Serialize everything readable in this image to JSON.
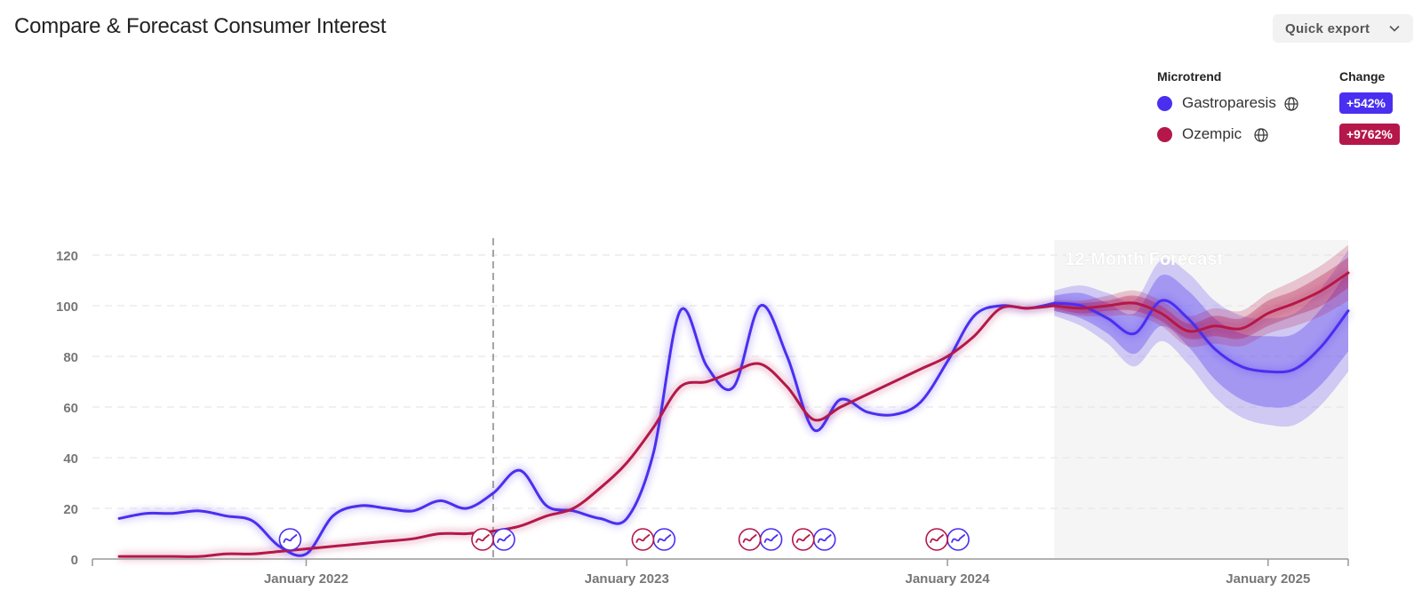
{
  "header": {
    "title": "Compare & Forecast Consumer Interest",
    "export_label": "Quick export"
  },
  "legend": {
    "name_header": "Microtrend",
    "change_header": "Change",
    "items": [
      {
        "name": "Gastroparesis",
        "change": "+542%",
        "color": "#4a2ff0"
      },
      {
        "name": "Ozempic",
        "change": "+9762%",
        "color": "#b5174b"
      }
    ]
  },
  "chart_data": {
    "type": "line",
    "forecast_label": "12-Month Forecast",
    "x_ticks": [
      "January 2022",
      "January 2023",
      "January 2024",
      "January 2025"
    ],
    "y_ticks": [
      0,
      20,
      40,
      60,
      80,
      100,
      120
    ],
    "ylim": [
      0,
      120
    ],
    "xlim": [
      "2021-05",
      "2025-04"
    ],
    "forecast_start": "2024-05",
    "vline": "2022-08",
    "grid": true,
    "series": [
      {
        "name": "Gastroparesis",
        "color": "#4a2ff0",
        "x": [
          "2021-06",
          "2021-07",
          "2021-08",
          "2021-09",
          "2021-10",
          "2021-11",
          "2021-12",
          "2022-01",
          "2022-02",
          "2022-03",
          "2022-04",
          "2022-05",
          "2022-06",
          "2022-07",
          "2022-08",
          "2022-09",
          "2022-10",
          "2022-11",
          "2022-12",
          "2023-01",
          "2023-02",
          "2023-03",
          "2023-04",
          "2023-05",
          "2023-06",
          "2023-07",
          "2023-08",
          "2023-09",
          "2023-10",
          "2023-11",
          "2023-12",
          "2024-01",
          "2024-02",
          "2024-03",
          "2024-04",
          "2024-05"
        ],
        "values": [
          16,
          18,
          18,
          19,
          17,
          15,
          5,
          2,
          17,
          21,
          20,
          19,
          23,
          20,
          26,
          35,
          21,
          19,
          16,
          16,
          42,
          98,
          76,
          68,
          100,
          80,
          51,
          63,
          58,
          57,
          62,
          78,
          96,
          100,
          99,
          101
        ]
      },
      {
        "name": "Ozempic",
        "color": "#b5174b",
        "x": [
          "2021-06",
          "2021-07",
          "2021-08",
          "2021-09",
          "2021-10",
          "2021-11",
          "2021-12",
          "2022-01",
          "2022-02",
          "2022-03",
          "2022-04",
          "2022-05",
          "2022-06",
          "2022-07",
          "2022-08",
          "2022-09",
          "2022-10",
          "2022-11",
          "2022-12",
          "2023-01",
          "2023-02",
          "2023-03",
          "2023-04",
          "2023-05",
          "2023-06",
          "2023-07",
          "2023-08",
          "2023-09",
          "2023-10",
          "2023-11",
          "2023-12",
          "2024-01",
          "2024-02",
          "2024-03",
          "2024-04",
          "2024-05"
        ],
        "values": [
          1,
          1,
          1,
          1,
          2,
          2,
          3,
          4,
          5,
          6,
          7,
          8,
          10,
          10,
          11,
          13,
          17,
          20,
          28,
          38,
          52,
          68,
          70,
          74,
          77,
          68,
          55,
          60,
          65,
          70,
          75,
          80,
          88,
          99,
          99,
          100
        ]
      }
    ],
    "forecast": [
      {
        "name": "Gastroparesis",
        "x": [
          "2024-05",
          "2024-06",
          "2024-07",
          "2024-08",
          "2024-09",
          "2024-10",
          "2024-11",
          "2024-12",
          "2025-01",
          "2025-02",
          "2025-03",
          "2025-04"
        ],
        "values": [
          101,
          100,
          95,
          89,
          102,
          95,
          83,
          76,
          74,
          75,
          84,
          98
        ],
        "band_inner": [
          3,
          5,
          6,
          8,
          10,
          11,
          12,
          13,
          14,
          14,
          15,
          16
        ],
        "band_outer": [
          5,
          8,
          10,
          13,
          16,
          18,
          19,
          20,
          21,
          22,
          23,
          24
        ]
      },
      {
        "name": "Ozempic",
        "x": [
          "2024-05",
          "2024-06",
          "2024-07",
          "2024-08",
          "2024-09",
          "2024-10",
          "2024-11",
          "2024-12",
          "2025-01",
          "2025-02",
          "2025-03",
          "2025-04"
        ],
        "values": [
          100,
          99,
          100,
          101,
          97,
          90,
          92,
          91,
          97,
          101,
          106,
          113
        ],
        "band_inner": [
          1,
          2,
          2,
          3,
          3,
          3,
          4,
          4,
          5,
          5,
          6,
          6
        ],
        "band_outer": [
          2,
          3,
          4,
          5,
          5,
          6,
          7,
          7,
          8,
          9,
          10,
          11
        ]
      }
    ],
    "event_markers": {
      "Gastroparesis": [
        "2021-12",
        "2022-08",
        "2023-02",
        "2023-06",
        "2023-08",
        "2024-01"
      ],
      "Ozempic": [
        "2022-08",
        "2023-02",
        "2023-06",
        "2023-08",
        "2024-01"
      ]
    }
  }
}
